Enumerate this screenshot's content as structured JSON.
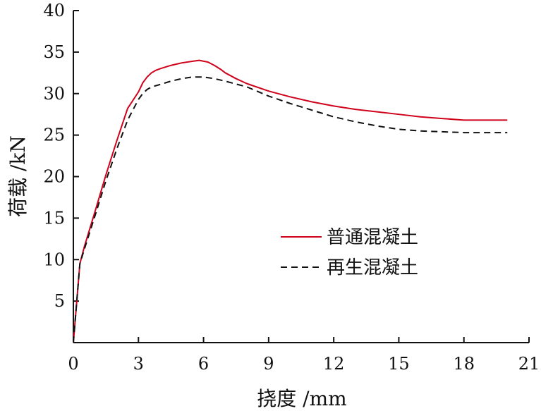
{
  "chart_data": {
    "type": "line",
    "xlabel": "挠度 /mm",
    "ylabel": "荷载 /kN",
    "xlim": [
      0,
      21
    ],
    "ylim": [
      0,
      40
    ],
    "xticks": [
      0,
      3,
      6,
      9,
      12,
      15,
      18,
      21
    ],
    "yticks": [
      0,
      5,
      10,
      15,
      20,
      25,
      30,
      35,
      40
    ],
    "grid": false,
    "legend_position": "right-middle",
    "series": [
      {
        "name": "普通混凝土",
        "color": "#d0021b",
        "line_style": "solid",
        "x": [
          0,
          0.3,
          0.5,
          1.0,
          1.5,
          2.0,
          2.5,
          3.0,
          3.2,
          3.4,
          3.6,
          3.8,
          4.0,
          4.5,
          5.0,
          5.5,
          5.8,
          6.2,
          6.5,
          6.8,
          7.0,
          7.5,
          8.0,
          9.0,
          10.0,
          11.0,
          12.0,
          13.0,
          14.0,
          15.0,
          16.0,
          17.0,
          18.0,
          19.0,
          20.0
        ],
        "y": [
          0,
          9.5,
          11.5,
          15.8,
          20.2,
          24.3,
          28.2,
          30.2,
          31.3,
          32.0,
          32.5,
          32.8,
          33.0,
          33.4,
          33.7,
          33.9,
          34.0,
          33.8,
          33.4,
          32.9,
          32.5,
          31.8,
          31.2,
          30.3,
          29.6,
          29.0,
          28.5,
          28.1,
          27.8,
          27.5,
          27.2,
          27.0,
          26.8,
          26.8,
          26.8
        ]
      },
      {
        "name": "再生混凝土",
        "color": "#111111",
        "line_style": "dashed",
        "x": [
          0,
          0.3,
          0.5,
          1.0,
          1.5,
          2.0,
          2.5,
          3.0,
          3.2,
          3.4,
          3.6,
          4.0,
          4.5,
          5.0,
          5.5,
          6.0,
          6.5,
          7.0,
          8.0,
          9.0,
          10.0,
          11.0,
          12.0,
          13.0,
          14.0,
          15.0,
          16.0,
          17.0,
          18.0,
          19.0,
          20.0
        ],
        "y": [
          0,
          9.5,
          11.2,
          15.3,
          19.5,
          23.3,
          26.8,
          29.3,
          30.0,
          30.5,
          30.8,
          31.1,
          31.5,
          31.8,
          32.0,
          32.0,
          31.8,
          31.5,
          30.8,
          29.7,
          28.8,
          28.0,
          27.2,
          26.6,
          26.1,
          25.7,
          25.5,
          25.4,
          25.3,
          25.3,
          25.3
        ]
      }
    ]
  }
}
